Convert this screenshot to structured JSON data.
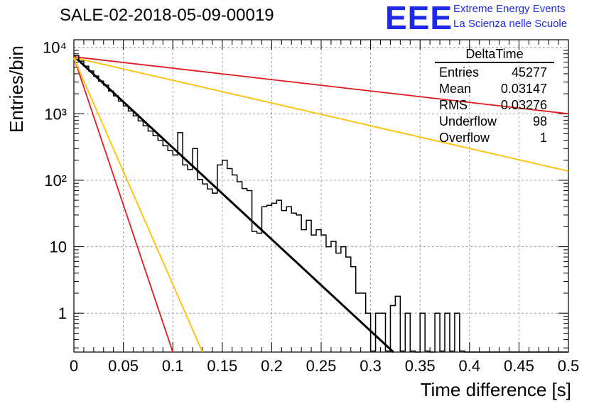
{
  "title": "SALE-02-2018-05-09-00019",
  "logo": {
    "mark": "EEE",
    "line1": "Extreme Energy Events",
    "line2": "La Scienza nelle Scuole"
  },
  "stats": {
    "title": "DeltaTime",
    "rows": [
      {
        "label": "Entries",
        "value": "45277"
      },
      {
        "label": "Mean",
        "value": "0.03147"
      },
      {
        "label": "RMS",
        "value": "0.03276"
      },
      {
        "label": "Underflow",
        "value": "98"
      },
      {
        "label": "Overflow",
        "value": "1"
      }
    ]
  },
  "colors": {
    "histogram": "#000000",
    "fit": "#000000",
    "red": "#e31a1c",
    "orange": "#ffbf00",
    "grid": "#a0a0a0"
  },
  "chart_data": {
    "type": "line",
    "title": "SALE-02-2018-05-09-00019",
    "xlabel": "Time difference [s]",
    "ylabel": "Entries/bin",
    "xlim": [
      0,
      0.5
    ],
    "ylim": [
      0.26,
      13000
    ],
    "yscale": "log",
    "grid": true,
    "legend": "top-right",
    "xticks": [
      0,
      0.05,
      0.1,
      0.15,
      0.2,
      0.25,
      0.3,
      0.35,
      0.4,
      0.45,
      0.5
    ],
    "xtick_labels": [
      "0",
      "0.05",
      "0.1",
      "0.15",
      "0.2",
      "0.25",
      "0.3",
      "0.35",
      "0.4",
      "0.45",
      "0.5"
    ],
    "yticks": [
      1,
      10,
      100,
      1000,
      10000
    ],
    "ytick_labels": [
      "1",
      "10",
      "10²",
      "10³",
      "10⁴"
    ],
    "histogram": {
      "name": "DeltaTime",
      "bin_width": 0.005,
      "x_start": 0,
      "counts": [
        7500,
        6200,
        5200,
        4400,
        3700,
        3100,
        2600,
        2200,
        1860,
        1550,
        1310,
        1100,
        930,
        780,
        660,
        550,
        470,
        400,
        330,
        280,
        240,
        200,
        170,
        145,
        122,
        103,
        88,
        74,
        64,
        54,
        45,
        38,
        33,
        26,
        24,
        20,
        17,
        16,
        14,
        11,
        9,
        8.3,
        7,
        6,
        5,
        4.3,
        3.6,
        3,
        2.5,
        2.1,
        1.8,
        1.5,
        1.3,
        1.1,
        1.0,
        0.8,
        0.7,
        0.6
      ],
      "fluctuations": [
        {
          "x": 0.03,
          "count": 2700
        },
        {
          "x": 0.105,
          "count": 520
        },
        {
          "x": 0.12,
          "count": 300
        },
        {
          "x": 0.145,
          "count": 170
        },
        {
          "x": 0.15,
          "count": 200
        },
        {
          "x": 0.155,
          "count": 150
        },
        {
          "x": 0.16,
          "count": 120
        },
        {
          "x": 0.165,
          "count": 95
        },
        {
          "x": 0.17,
          "count": 75
        },
        {
          "x": 0.175,
          "count": 70
        },
        {
          "x": 0.19,
          "count": 40
        },
        {
          "x": 0.195,
          "count": 42
        },
        {
          "x": 0.2,
          "count": 45
        },
        {
          "x": 0.205,
          "count": 50
        },
        {
          "x": 0.21,
          "count": 35
        },
        {
          "x": 0.215,
          "count": 40
        },
        {
          "x": 0.22,
          "count": 32
        },
        {
          "x": 0.225,
          "count": 30
        },
        {
          "x": 0.23,
          "count": 18
        },
        {
          "x": 0.235,
          "count": 25
        },
        {
          "x": 0.24,
          "count": 15
        },
        {
          "x": 0.245,
          "count": 18
        },
        {
          "x": 0.25,
          "count": 15
        },
        {
          "x": 0.255,
          "count": 10
        },
        {
          "x": 0.26,
          "count": 12
        },
        {
          "x": 0.265,
          "count": 8
        },
        {
          "x": 0.27,
          "count": 10
        },
        {
          "x": 0.275,
          "count": 7
        },
        {
          "x": 0.28,
          "count": 5
        },
        {
          "x": 0.285,
          "count": 2
        },
        {
          "x": 0.29,
          "count": 2
        },
        {
          "x": 0.295,
          "count": 1
        },
        {
          "x": 0.3,
          "count": 0.27
        },
        {
          "x": 0.305,
          "count": 1
        },
        {
          "x": 0.31,
          "count": 1
        },
        {
          "x": 0.315,
          "count": 0.27
        },
        {
          "x": 0.32,
          "count": 1.3
        },
        {
          "x": 0.325,
          "count": 1.8
        },
        {
          "x": 0.33,
          "count": 0.27
        },
        {
          "x": 0.335,
          "count": 1
        },
        {
          "x": 0.34,
          "count": 0.27
        },
        {
          "x": 0.35,
          "count": 1
        },
        {
          "x": 0.355,
          "count": 0.27
        },
        {
          "x": 0.365,
          "count": 1
        },
        {
          "x": 0.37,
          "count": 0.27
        },
        {
          "x": 0.375,
          "count": 1
        },
        {
          "x": 0.38,
          "count": 0.27
        },
        {
          "x": 0.385,
          "count": 1
        },
        {
          "x": 0.39,
          "count": 0.27
        }
      ]
    },
    "series": [
      {
        "color": "#000000",
        "kind": "exponential",
        "x": [
          0,
          0.323
        ],
        "y": [
          7400,
          0.26
        ]
      },
      {
        "color": "#e31a1c",
        "kind": "exponential",
        "x": [
          0,
          0.1
        ],
        "y": [
          7000,
          0.26
        ]
      },
      {
        "color": "#ffbf00",
        "kind": "exponential",
        "x": [
          0,
          0.13
        ],
        "y": [
          6800,
          0.26
        ]
      },
      {
        "color": "#e31a1c",
        "kind": "exponential",
        "x": [
          0,
          0.5
        ],
        "y": [
          7200,
          1000
        ]
      },
      {
        "color": "#ffbf00",
        "kind": "exponential",
        "x": [
          0,
          0.5
        ],
        "y": [
          7000,
          137
        ]
      }
    ]
  }
}
